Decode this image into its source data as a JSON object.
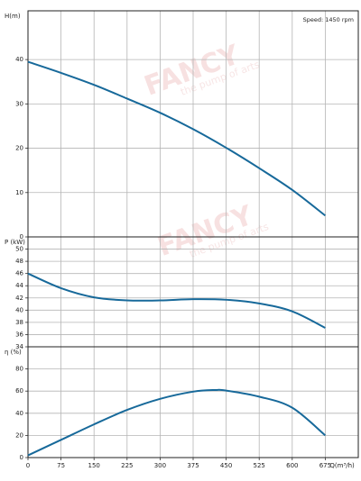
{
  "annotation": "Speed: 1450 rpm",
  "watermark": {
    "brand": "FANCY",
    "tagline": "the pump of arts"
  },
  "chart_data": [
    {
      "type": "line",
      "ylabel": "H(m)",
      "xlim": [
        0,
        750
      ],
      "xticks": [
        0,
        75,
        150,
        225,
        300,
        375,
        450,
        525,
        600,
        675
      ],
      "ylim": [
        0,
        51
      ],
      "yticks": [
        0,
        10,
        20,
        30,
        40
      ],
      "grid": true,
      "series": [
        {
          "color": "#17699a",
          "x": [
            0,
            75,
            150,
            225,
            300,
            375,
            450,
            525,
            600,
            675
          ],
          "values": [
            39.5,
            37,
            34.3,
            31.2,
            28,
            24.3,
            20.1,
            15.5,
            10.6,
            4.8
          ]
        }
      ]
    },
    {
      "type": "line",
      "ylabel": "P (kW)",
      "xlim": [
        0,
        750
      ],
      "xticks": [
        0,
        75,
        150,
        225,
        300,
        375,
        450,
        525,
        600,
        675
      ],
      "ylim": [
        34,
        52
      ],
      "yticks": [
        34,
        36,
        38,
        40,
        42,
        44,
        46,
        48,
        50
      ],
      "grid": true,
      "series": [
        {
          "color": "#17699a",
          "x": [
            0,
            75,
            150,
            225,
            300,
            375,
            450,
            525,
            600,
            675
          ],
          "values": [
            46,
            43.6,
            42.1,
            41.6,
            41.6,
            41.8,
            41.7,
            41.1,
            39.8,
            37.1
          ]
        }
      ]
    },
    {
      "type": "line",
      "ylabel": "η (%)",
      "xlabel": "Q(m³/h)",
      "xlim": [
        0,
        750
      ],
      "xticks": [
        0,
        75,
        150,
        225,
        300,
        375,
        450,
        525,
        600,
        675
      ],
      "ylim": [
        0,
        100
      ],
      "yticks": [
        0,
        20,
        40,
        60,
        80
      ],
      "grid": true,
      "series": [
        {
          "color": "#17699a",
          "x": [
            0,
            75,
            150,
            225,
            300,
            375,
            425,
            450,
            525,
            600,
            675
          ],
          "values": [
            2,
            16,
            30,
            43,
            53,
            59.5,
            61,
            60.5,
            55,
            45,
            20
          ]
        }
      ]
    }
  ]
}
